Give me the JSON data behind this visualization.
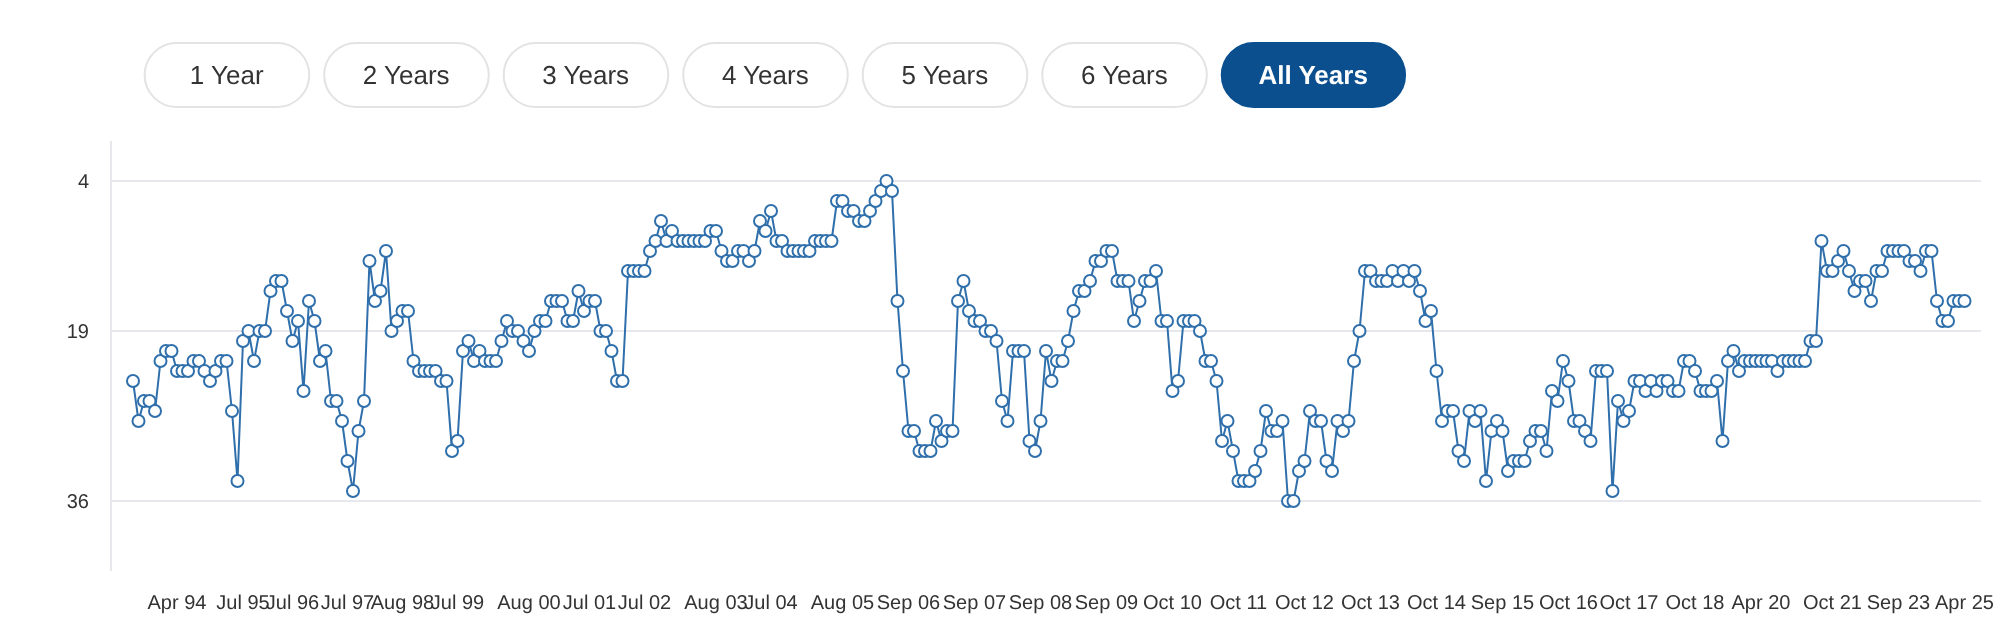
{
  "chart_data": {
    "type": "line",
    "annotations": [
      "1 Year",
      "2 Years",
      "3 Years",
      "4 Years",
      "5 Years",
      "6 Years",
      "All Years"
    ],
    "categories": [
      null,
      null,
      null,
      null,
      null,
      null,
      null,
      null,
      "Apr 94",
      null,
      null,
      null,
      null,
      null,
      null,
      null,
      null,
      null,
      null,
      null,
      "Jul 95",
      null,
      null,
      null,
      null,
      null,
      null,
      null,
      null,
      "Jul 96",
      null,
      null,
      null,
      null,
      null,
      null,
      null,
      null,
      null,
      "Jul 97",
      null,
      null,
      null,
      null,
      null,
      null,
      null,
      null,
      null,
      "Aug 98",
      null,
      null,
      null,
      null,
      null,
      null,
      null,
      null,
      null,
      "Jul 99",
      null,
      null,
      null,
      null,
      null,
      null,
      null,
      null,
      null,
      null,
      null,
      null,
      "Aug 00",
      null,
      null,
      null,
      null,
      null,
      null,
      null,
      null,
      null,
      null,
      "Jul 01",
      null,
      null,
      null,
      null,
      null,
      null,
      null,
      null,
      null,
      "Jul 02",
      null,
      null,
      null,
      null,
      null,
      null,
      null,
      null,
      null,
      null,
      null,
      null,
      "Aug 03",
      null,
      null,
      null,
      null,
      null,
      null,
      null,
      null,
      null,
      "Jul 04",
      null,
      null,
      null,
      null,
      null,
      null,
      null,
      null,
      null,
      null,
      null,
      null,
      "Aug 05",
      null,
      null,
      null,
      null,
      null,
      null,
      null,
      null,
      null,
      null,
      null,
      "Sep 06",
      null,
      null,
      null,
      null,
      null,
      null,
      null,
      null,
      null,
      null,
      null,
      "Sep 07",
      null,
      null,
      null,
      null,
      null,
      null,
      null,
      null,
      null,
      null,
      null,
      "Sep 08",
      null,
      null,
      null,
      null,
      null,
      null,
      null,
      null,
      null,
      null,
      null,
      "Sep 09",
      null,
      null,
      null,
      null,
      null,
      null,
      null,
      null,
      null,
      null,
      null,
      "Oct 10",
      null,
      null,
      null,
      null,
      null,
      null,
      null,
      null,
      null,
      null,
      null,
      "Oct 11",
      null,
      null,
      null,
      null,
      null,
      null,
      null,
      null,
      null,
      null,
      null,
      "Oct 12",
      null,
      null,
      null,
      null,
      null,
      null,
      null,
      null,
      null,
      null,
      null,
      "Oct 13",
      null,
      null,
      null,
      null,
      null,
      null,
      null,
      null,
      null,
      null,
      null,
      "Oct 14",
      null,
      null,
      null,
      null,
      null,
      null,
      null,
      null,
      null,
      null,
      null,
      "Sep 15",
      null,
      null,
      null,
      null,
      null,
      null,
      null,
      null,
      null,
      null,
      null,
      "Oct 16",
      null,
      null,
      null,
      null,
      null,
      null,
      null,
      null,
      null,
      null,
      "Oct 17",
      null,
      null,
      null,
      null,
      null,
      null,
      null,
      null,
      null,
      null,
      null,
      "Oct 18",
      null,
      null,
      null,
      null,
      null,
      null,
      null,
      null,
      null,
      null,
      null,
      "Apr 20",
      null,
      null,
      null,
      null,
      null,
      null,
      null,
      null,
      null,
      null,
      null,
      null,
      "Oct 21",
      null,
      null,
      null,
      null,
      null,
      null,
      null,
      null,
      null,
      null,
      null,
      "Sep 23",
      null,
      null,
      null,
      null,
      null,
      null,
      null,
      null,
      null,
      null,
      null,
      "Apr 25"
    ],
    "series": [
      {
        "color": "#2f6fab",
        "values": [
          24,
          28,
          26,
          26,
          27,
          22,
          21,
          21,
          23,
          23,
          23,
          22,
          22,
          23,
          24,
          23,
          22,
          22,
          27,
          34,
          20,
          19,
          22,
          19,
          19,
          15,
          14,
          14,
          17,
          20,
          18,
          25,
          16,
          18,
          22,
          21,
          26,
          26,
          28,
          32,
          35,
          29,
          26,
          12,
          16,
          15,
          11,
          19,
          18,
          17,
          17,
          22,
          23,
          23,
          23,
          23,
          24,
          24,
          31,
          30,
          21,
          20,
          22,
          21,
          22,
          22,
          22,
          20,
          18,
          19,
          19,
          20,
          21,
          19,
          18,
          18,
          16,
          16,
          16,
          18,
          18,
          15,
          17,
          16,
          16,
          19,
          19,
          21,
          24,
          24,
          13,
          13,
          13,
          13,
          11,
          10,
          8,
          10,
          9,
          10,
          10,
          10,
          10,
          10,
          10,
          9,
          9,
          11,
          12,
          12,
          11,
          11,
          12,
          11,
          8,
          9,
          7,
          10,
          10,
          11,
          11,
          11,
          11,
          11,
          10,
          10,
          10,
          10,
          6,
          6,
          7,
          7,
          8,
          8,
          7,
          6,
          5,
          4,
          5,
          16,
          23,
          29,
          29,
          31,
          31,
          31,
          28,
          30,
          29,
          29,
          16,
          14,
          17,
          18,
          18,
          19,
          19,
          20,
          26,
          28,
          21,
          21,
          21,
          30,
          31,
          28,
          21,
          24,
          22,
          22,
          20,
          17,
          15,
          15,
          14,
          12,
          12,
          11,
          11,
          14,
          14,
          14,
          18,
          16,
          14,
          14,
          13,
          18,
          18,
          25,
          24,
          18,
          18,
          18,
          19,
          22,
          22,
          24,
          30,
          28,
          31,
          34,
          34,
          34,
          33,
          31,
          27,
          29,
          29,
          28,
          36,
          36,
          33,
          32,
          27,
          28,
          28,
          32,
          33,
          28,
          29,
          28,
          22,
          19,
          13,
          13,
          14,
          14,
          14,
          13,
          14,
          13,
          14,
          13,
          15,
          18,
          17,
          23,
          28,
          27,
          27,
          31,
          32,
          27,
          28,
          27,
          34,
          29,
          28,
          29,
          33,
          32,
          32,
          32,
          30,
          29,
          29,
          31,
          25,
          26,
          22,
          24,
          28,
          28,
          29,
          30,
          23,
          23,
          23,
          35,
          26,
          28,
          27,
          24,
          24,
          25,
          24,
          25,
          24,
          24,
          25,
          25,
          22,
          22,
          23,
          25,
          25,
          25,
          24,
          30,
          22,
          21,
          23,
          22,
          22,
          22,
          22,
          22,
          22,
          23,
          22,
          22,
          22,
          22,
          22,
          20,
          20,
          10,
          13,
          13,
          12,
          11,
          13,
          15,
          14,
          14,
          16,
          13,
          13,
          11,
          11,
          11,
          11,
          12,
          12,
          13,
          11,
          11,
          16,
          18,
          18,
          16,
          16,
          16
        ]
      }
    ],
    "ylim": [
      43,
      0
    ],
    "yticks": [
      4,
      19,
      36
    ],
    "grid": "y",
    "marker": "circle",
    "line_style": "solid"
  }
}
